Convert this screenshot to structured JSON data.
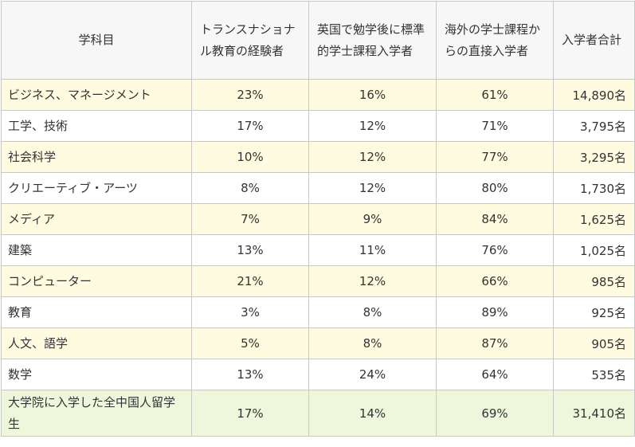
{
  "headers": [
    "学科目",
    "トランスナショナル教育の経験者",
    "英国で勉学後に標準的学士課程入学者",
    "海外の学士課程からの直接入学者",
    "入学者合計"
  ],
  "rows": [
    {
      "subject": "ビジネス、マネージメント",
      "tne": "23%",
      "uk": "16%",
      "direct": "61%",
      "total": "14,890名"
    },
    {
      "subject": "工学、技術",
      "tne": "17%",
      "uk": "12%",
      "direct": "71%",
      "total": "3,795名"
    },
    {
      "subject": "社会科学",
      "tne": "10%",
      "uk": "12%",
      "direct": "77%",
      "total": "3,295名"
    },
    {
      "subject": "クリエーティブ・アーツ",
      "tne": "8%",
      "uk": "12%",
      "direct": "80%",
      "total": "1,730名"
    },
    {
      "subject": "メディア",
      "tne": "7%",
      "uk": "9%",
      "direct": "84%",
      "total": "1,625名"
    },
    {
      "subject": "建築",
      "tne": "13%",
      "uk": "11%",
      "direct": "76%",
      "total": "1,025名"
    },
    {
      "subject": "コンピューター",
      "tne": "21%",
      "uk": "12%",
      "direct": "66%",
      "total": "985名"
    },
    {
      "subject": "教育",
      "tne": "3%",
      "uk": "8%",
      "direct": "89%",
      "total": "925名"
    },
    {
      "subject": "人文、語学",
      "tne": "5%",
      "uk": "8%",
      "direct": "87%",
      "total": "905名"
    },
    {
      "subject": "数学",
      "tne": "13%",
      "uk": "24%",
      "direct": "64%",
      "total": "535名"
    }
  ],
  "summary": {
    "subject": "大学院に入学した全中国人留学生",
    "tne": "17%",
    "uk": "14%",
    "direct": "69%",
    "total": "31,410名"
  }
}
